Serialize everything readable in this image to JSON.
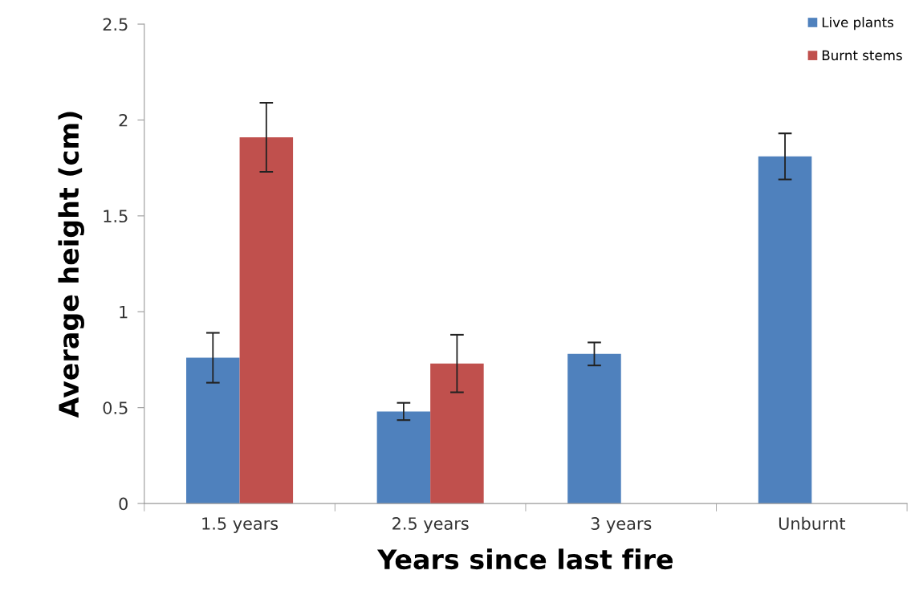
{
  "chart_data": {
    "type": "bar",
    "xlabel": "Years since last fire",
    "ylabel": "Average height (cm)",
    "categories": [
      "1.5 years",
      "2.5 years",
      "3 years",
      "Unburnt"
    ],
    "series": [
      {
        "name": "Live plants",
        "color": "#4f81bd",
        "values": [
          0.76,
          0.48,
          0.78,
          1.81
        ],
        "errors": [
          0.13,
          0.045,
          0.06,
          0.12
        ]
      },
      {
        "name": "Burnt stems",
        "color": "#c0504d",
        "values": [
          1.91,
          0.73,
          null,
          null
        ],
        "errors": [
          0.18,
          0.15,
          null,
          null
        ]
      }
    ],
    "ylim": [
      0,
      2.5
    ],
    "yticks": [
      0,
      0.5,
      1,
      1.5,
      2,
      2.5
    ],
    "grid": false,
    "legend": "top right"
  }
}
